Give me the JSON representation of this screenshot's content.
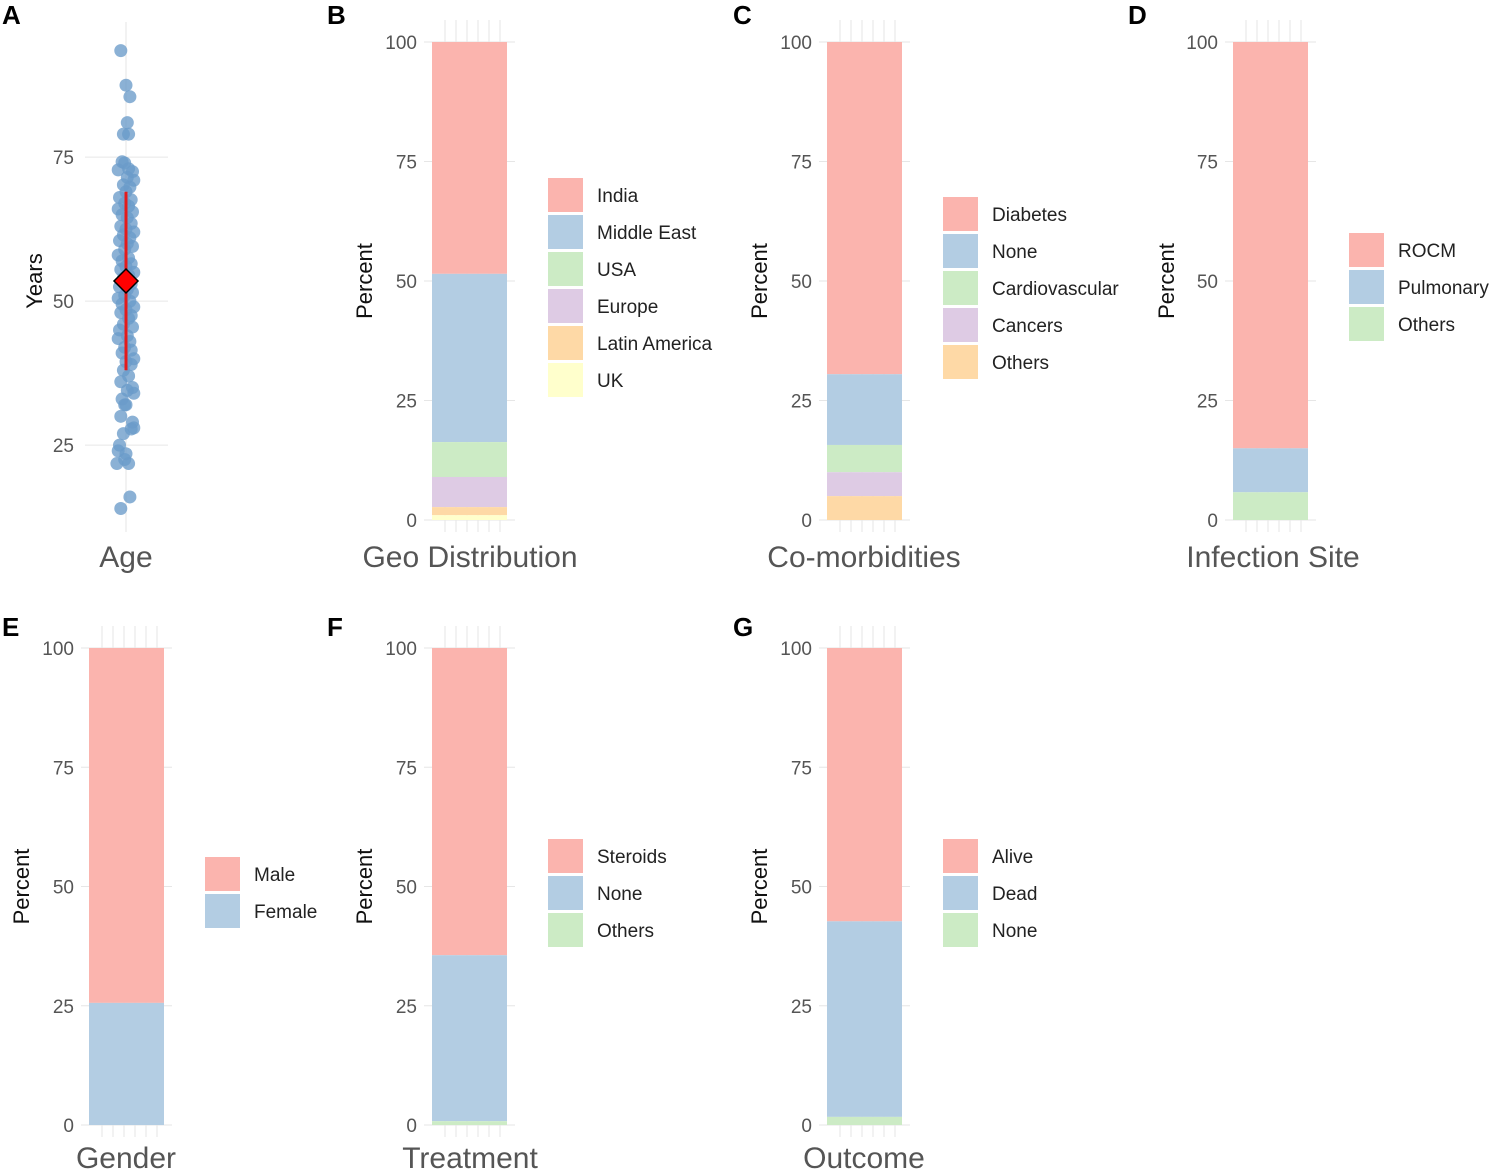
{
  "colors": {
    "pink": "#FBB4AE",
    "blue": "#B3CDE3",
    "green": "#CCEBC5",
    "purple": "#DECBE4",
    "orange": "#FED9A6",
    "yellow": "#FFFFCC",
    "points": "#6A9BC9",
    "mean": "#FF0000",
    "range": "#E41A1C"
  },
  "chart_data": [
    {
      "id": "A",
      "type": "scatter",
      "title": "",
      "xlabel": "Age",
      "ylabel": "Years",
      "yticks": [
        25,
        50,
        75
      ],
      "ylim": [
        12,
        95
      ],
      "mean": 53.5,
      "range_line": [
        38,
        69
      ],
      "points": [
        {
          "x": -0.2,
          "y": 93.5
        },
        {
          "x": 0.0,
          "y": 87.5
        },
        {
          "x": 0.15,
          "y": 85.5
        },
        {
          "x": 0.05,
          "y": 81
        },
        {
          "x": -0.1,
          "y": 79
        },
        {
          "x": 0.1,
          "y": 79
        },
        {
          "x": -0.15,
          "y": 74.2
        },
        {
          "x": -0.05,
          "y": 74
        },
        {
          "x": 0.1,
          "y": 73
        },
        {
          "x": 0.25,
          "y": 72.5
        },
        {
          "x": -0.3,
          "y": 72.8
        },
        {
          "x": 0.05,
          "y": 71.5
        },
        {
          "x": 0.3,
          "y": 71
        },
        {
          "x": -0.1,
          "y": 70.2
        },
        {
          "x": 0.15,
          "y": 69.8
        },
        {
          "x": 0.0,
          "y": 69
        },
        {
          "x": -0.25,
          "y": 68
        },
        {
          "x": 0.2,
          "y": 67.6
        },
        {
          "x": -0.05,
          "y": 67
        },
        {
          "x": 0.1,
          "y": 66.5
        },
        {
          "x": -0.3,
          "y": 66
        },
        {
          "x": 0.25,
          "y": 65.5
        },
        {
          "x": -0.15,
          "y": 65
        },
        {
          "x": 0.05,
          "y": 64.5
        },
        {
          "x": 0.2,
          "y": 63.5
        },
        {
          "x": -0.2,
          "y": 63
        },
        {
          "x": 0.0,
          "y": 62.5
        },
        {
          "x": 0.3,
          "y": 62
        },
        {
          "x": -0.1,
          "y": 61.5
        },
        {
          "x": 0.15,
          "y": 61
        },
        {
          "x": -0.25,
          "y": 60.5
        },
        {
          "x": 0.05,
          "y": 60
        },
        {
          "x": 0.25,
          "y": 59.5
        },
        {
          "x": -0.05,
          "y": 59
        },
        {
          "x": -0.3,
          "y": 58
        },
        {
          "x": 0.1,
          "y": 57.5
        },
        {
          "x": -0.15,
          "y": 57
        },
        {
          "x": 0.2,
          "y": 56.5
        },
        {
          "x": 0.0,
          "y": 56
        },
        {
          "x": -0.2,
          "y": 55.5
        },
        {
          "x": 0.3,
          "y": 55
        },
        {
          "x": 0.1,
          "y": 54.5
        },
        {
          "x": -0.1,
          "y": 54
        },
        {
          "x": 0.2,
          "y": 53
        },
        {
          "x": -0.25,
          "y": 52.5
        },
        {
          "x": 0.05,
          "y": 52
        },
        {
          "x": 0.25,
          "y": 51.5
        },
        {
          "x": -0.05,
          "y": 51
        },
        {
          "x": -0.3,
          "y": 50.5
        },
        {
          "x": 0.15,
          "y": 50
        },
        {
          "x": -0.15,
          "y": 49.5
        },
        {
          "x": 0.3,
          "y": 49
        },
        {
          "x": 0.0,
          "y": 48.5
        },
        {
          "x": -0.2,
          "y": 48
        },
        {
          "x": 0.2,
          "y": 47.5
        },
        {
          "x": 0.1,
          "y": 47
        },
        {
          "x": -0.1,
          "y": 46
        },
        {
          "x": 0.25,
          "y": 45.5
        },
        {
          "x": -0.25,
          "y": 45
        },
        {
          "x": 0.05,
          "y": 44
        },
        {
          "x": -0.3,
          "y": 43.5
        },
        {
          "x": 0.15,
          "y": 43
        },
        {
          "x": -0.05,
          "y": 42
        },
        {
          "x": 0.2,
          "y": 41.5
        },
        {
          "x": -0.15,
          "y": 41
        },
        {
          "x": 0.3,
          "y": 40
        },
        {
          "x": 0.0,
          "y": 39.5
        },
        {
          "x": 0.2,
          "y": 39
        },
        {
          "x": -0.1,
          "y": 38
        },
        {
          "x": 0.1,
          "y": 37
        },
        {
          "x": -0.2,
          "y": 36
        },
        {
          "x": 0.25,
          "y": 35
        },
        {
          "x": 0.05,
          "y": 34.5
        },
        {
          "x": 0.3,
          "y": 34
        },
        {
          "x": -0.15,
          "y": 33
        },
        {
          "x": 0.0,
          "y": 32
        },
        {
          "x": -0.05,
          "y": 32
        },
        {
          "x": -0.2,
          "y": 30
        },
        {
          "x": 0.25,
          "y": 29
        },
        {
          "x": 0.3,
          "y": 28
        },
        {
          "x": 0.2,
          "y": 27.8
        },
        {
          "x": -0.1,
          "y": 27
        },
        {
          "x": -0.25,
          "y": 25
        },
        {
          "x": -0.3,
          "y": 24
        },
        {
          "x": 0.0,
          "y": 23.5
        },
        {
          "x": -0.05,
          "y": 22.5
        },
        {
          "x": 0.1,
          "y": 21.8
        },
        {
          "x": -0.35,
          "y": 21.8
        },
        {
          "x": 0.15,
          "y": 16
        },
        {
          "x": -0.2,
          "y": 14
        }
      ]
    },
    {
      "id": "B",
      "type": "bar",
      "stacked": true,
      "xlabel": "Geo Distribution",
      "ylabel": "Percent",
      "yticks": [
        0,
        25,
        50,
        75,
        100
      ],
      "ylim": [
        0,
        100
      ],
      "segments": [
        {
          "label": "India",
          "value": 48.5,
          "color": "#FBB4AE"
        },
        {
          "label": "Middle East",
          "value": 35.2,
          "color": "#B3CDE3"
        },
        {
          "label": "USA",
          "value": 7.3,
          "color": "#CCEBC5"
        },
        {
          "label": "Europe",
          "value": 6.3,
          "color": "#DECBE4"
        },
        {
          "label": "Latin America",
          "value": 1.7,
          "color": "#FED9A6"
        },
        {
          "label": "UK",
          "value": 1.0,
          "color": "#FFFFCC"
        }
      ]
    },
    {
      "id": "C",
      "type": "bar",
      "stacked": true,
      "xlabel": "Co-morbidities",
      "ylabel": "Percent",
      "yticks": [
        0,
        25,
        50,
        75,
        100
      ],
      "ylim": [
        0,
        100
      ],
      "segments": [
        {
          "label": "Diabetes",
          "value": 69.5,
          "color": "#FBB4AE"
        },
        {
          "label": "None",
          "value": 14.8,
          "color": "#B3CDE3"
        },
        {
          "label": "Cardiovascular",
          "value": 5.7,
          "color": "#CCEBC5"
        },
        {
          "label": "Cancers",
          "value": 5.0,
          "color": "#DECBE4"
        },
        {
          "label": "Others",
          "value": 5.0,
          "color": "#FED9A6"
        }
      ]
    },
    {
      "id": "D",
      "type": "bar",
      "stacked": true,
      "xlabel": "Infection Site",
      "ylabel": "Percent",
      "yticks": [
        0,
        25,
        50,
        75,
        100
      ],
      "ylim": [
        0,
        100
      ],
      "segments": [
        {
          "label": "ROCM",
          "value": 85.0,
          "color": "#FBB4AE"
        },
        {
          "label": "Pulmonary",
          "value": 9.2,
          "color": "#B3CDE3"
        },
        {
          "label": "Others",
          "value": 5.8,
          "color": "#CCEBC5"
        }
      ]
    },
    {
      "id": "E",
      "type": "bar",
      "stacked": true,
      "xlabel": "Gender",
      "ylabel": "Percent",
      "yticks": [
        0,
        25,
        50,
        75,
        100
      ],
      "ylim": [
        0,
        100
      ],
      "segments": [
        {
          "label": "Male",
          "value": 74.4,
          "color": "#FBB4AE"
        },
        {
          "label": "Female",
          "value": 25.6,
          "color": "#B3CDE3"
        }
      ]
    },
    {
      "id": "F",
      "type": "bar",
      "stacked": true,
      "xlabel": "Treatment",
      "ylabel": "Percent",
      "yticks": [
        0,
        25,
        50,
        75,
        100
      ],
      "ylim": [
        0,
        100
      ],
      "segments": [
        {
          "label": "Steroids",
          "value": 64.4,
          "color": "#FBB4AE"
        },
        {
          "label": "None",
          "value": 34.8,
          "color": "#B3CDE3"
        },
        {
          "label": "Others",
          "value": 0.8,
          "color": "#CCEBC5"
        }
      ]
    },
    {
      "id": "G",
      "type": "bar",
      "stacked": true,
      "xlabel": "Outcome",
      "ylabel": "Percent",
      "yticks": [
        0,
        25,
        50,
        75,
        100
      ],
      "ylim": [
        0,
        100
      ],
      "segments": [
        {
          "label": "Alive",
          "value": 57.3,
          "color": "#FBB4AE"
        },
        {
          "label": "Dead",
          "value": 41.0,
          "color": "#B3CDE3"
        },
        {
          "label": "None",
          "value": 1.7,
          "color": "#CCEBC5"
        }
      ]
    }
  ]
}
